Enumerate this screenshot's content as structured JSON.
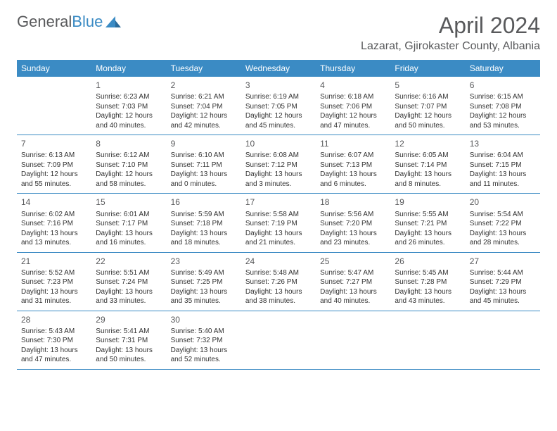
{
  "brand": {
    "name_part1": "General",
    "name_part2": "Blue"
  },
  "colors": {
    "accent": "#3b8bc4",
    "text": "#58595b",
    "body": "#333333",
    "bg": "#ffffff"
  },
  "header": {
    "month_title": "April 2024",
    "location": "Lazarat, Gjirokaster County, Albania"
  },
  "day_names": [
    "Sunday",
    "Monday",
    "Tuesday",
    "Wednesday",
    "Thursday",
    "Friday",
    "Saturday"
  ],
  "weeks": [
    [
      null,
      {
        "day": "1",
        "sunrise": "Sunrise: 6:23 AM",
        "sunset": "Sunset: 7:03 PM",
        "daylight": "Daylight: 12 hours and 40 minutes."
      },
      {
        "day": "2",
        "sunrise": "Sunrise: 6:21 AM",
        "sunset": "Sunset: 7:04 PM",
        "daylight": "Daylight: 12 hours and 42 minutes."
      },
      {
        "day": "3",
        "sunrise": "Sunrise: 6:19 AM",
        "sunset": "Sunset: 7:05 PM",
        "daylight": "Daylight: 12 hours and 45 minutes."
      },
      {
        "day": "4",
        "sunrise": "Sunrise: 6:18 AM",
        "sunset": "Sunset: 7:06 PM",
        "daylight": "Daylight: 12 hours and 47 minutes."
      },
      {
        "day": "5",
        "sunrise": "Sunrise: 6:16 AM",
        "sunset": "Sunset: 7:07 PM",
        "daylight": "Daylight: 12 hours and 50 minutes."
      },
      {
        "day": "6",
        "sunrise": "Sunrise: 6:15 AM",
        "sunset": "Sunset: 7:08 PM",
        "daylight": "Daylight: 12 hours and 53 minutes."
      }
    ],
    [
      {
        "day": "7",
        "sunrise": "Sunrise: 6:13 AM",
        "sunset": "Sunset: 7:09 PM",
        "daylight": "Daylight: 12 hours and 55 minutes."
      },
      {
        "day": "8",
        "sunrise": "Sunrise: 6:12 AM",
        "sunset": "Sunset: 7:10 PM",
        "daylight": "Daylight: 12 hours and 58 minutes."
      },
      {
        "day": "9",
        "sunrise": "Sunrise: 6:10 AM",
        "sunset": "Sunset: 7:11 PM",
        "daylight": "Daylight: 13 hours and 0 minutes."
      },
      {
        "day": "10",
        "sunrise": "Sunrise: 6:08 AM",
        "sunset": "Sunset: 7:12 PM",
        "daylight": "Daylight: 13 hours and 3 minutes."
      },
      {
        "day": "11",
        "sunrise": "Sunrise: 6:07 AM",
        "sunset": "Sunset: 7:13 PM",
        "daylight": "Daylight: 13 hours and 6 minutes."
      },
      {
        "day": "12",
        "sunrise": "Sunrise: 6:05 AM",
        "sunset": "Sunset: 7:14 PM",
        "daylight": "Daylight: 13 hours and 8 minutes."
      },
      {
        "day": "13",
        "sunrise": "Sunrise: 6:04 AM",
        "sunset": "Sunset: 7:15 PM",
        "daylight": "Daylight: 13 hours and 11 minutes."
      }
    ],
    [
      {
        "day": "14",
        "sunrise": "Sunrise: 6:02 AM",
        "sunset": "Sunset: 7:16 PM",
        "daylight": "Daylight: 13 hours and 13 minutes."
      },
      {
        "day": "15",
        "sunrise": "Sunrise: 6:01 AM",
        "sunset": "Sunset: 7:17 PM",
        "daylight": "Daylight: 13 hours and 16 minutes."
      },
      {
        "day": "16",
        "sunrise": "Sunrise: 5:59 AM",
        "sunset": "Sunset: 7:18 PM",
        "daylight": "Daylight: 13 hours and 18 minutes."
      },
      {
        "day": "17",
        "sunrise": "Sunrise: 5:58 AM",
        "sunset": "Sunset: 7:19 PM",
        "daylight": "Daylight: 13 hours and 21 minutes."
      },
      {
        "day": "18",
        "sunrise": "Sunrise: 5:56 AM",
        "sunset": "Sunset: 7:20 PM",
        "daylight": "Daylight: 13 hours and 23 minutes."
      },
      {
        "day": "19",
        "sunrise": "Sunrise: 5:55 AM",
        "sunset": "Sunset: 7:21 PM",
        "daylight": "Daylight: 13 hours and 26 minutes."
      },
      {
        "day": "20",
        "sunrise": "Sunrise: 5:54 AM",
        "sunset": "Sunset: 7:22 PM",
        "daylight": "Daylight: 13 hours and 28 minutes."
      }
    ],
    [
      {
        "day": "21",
        "sunrise": "Sunrise: 5:52 AM",
        "sunset": "Sunset: 7:23 PM",
        "daylight": "Daylight: 13 hours and 31 minutes."
      },
      {
        "day": "22",
        "sunrise": "Sunrise: 5:51 AM",
        "sunset": "Sunset: 7:24 PM",
        "daylight": "Daylight: 13 hours and 33 minutes."
      },
      {
        "day": "23",
        "sunrise": "Sunrise: 5:49 AM",
        "sunset": "Sunset: 7:25 PM",
        "daylight": "Daylight: 13 hours and 35 minutes."
      },
      {
        "day": "24",
        "sunrise": "Sunrise: 5:48 AM",
        "sunset": "Sunset: 7:26 PM",
        "daylight": "Daylight: 13 hours and 38 minutes."
      },
      {
        "day": "25",
        "sunrise": "Sunrise: 5:47 AM",
        "sunset": "Sunset: 7:27 PM",
        "daylight": "Daylight: 13 hours and 40 minutes."
      },
      {
        "day": "26",
        "sunrise": "Sunrise: 5:45 AM",
        "sunset": "Sunset: 7:28 PM",
        "daylight": "Daylight: 13 hours and 43 minutes."
      },
      {
        "day": "27",
        "sunrise": "Sunrise: 5:44 AM",
        "sunset": "Sunset: 7:29 PM",
        "daylight": "Daylight: 13 hours and 45 minutes."
      }
    ],
    [
      {
        "day": "28",
        "sunrise": "Sunrise: 5:43 AM",
        "sunset": "Sunset: 7:30 PM",
        "daylight": "Daylight: 13 hours and 47 minutes."
      },
      {
        "day": "29",
        "sunrise": "Sunrise: 5:41 AM",
        "sunset": "Sunset: 7:31 PM",
        "daylight": "Daylight: 13 hours and 50 minutes."
      },
      {
        "day": "30",
        "sunrise": "Sunrise: 5:40 AM",
        "sunset": "Sunset: 7:32 PM",
        "daylight": "Daylight: 13 hours and 52 minutes."
      },
      null,
      null,
      null,
      null
    ]
  ]
}
